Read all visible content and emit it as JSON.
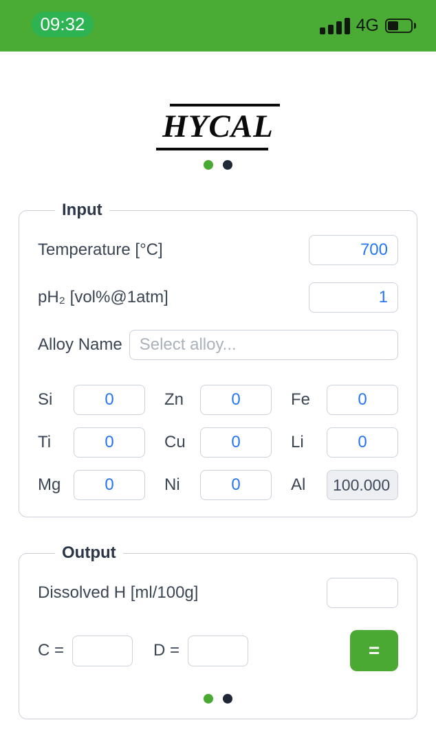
{
  "colors": {
    "header_green": "#4aab35",
    "pill_green": "#2db351",
    "accent_green": "#4aa933",
    "dark_navy": "#2b3648",
    "value_blue": "#2575f4"
  },
  "status_bar": {
    "time": "09:32",
    "network": "4G",
    "signal_bars": 4,
    "battery_level": "45%"
  },
  "logo": {
    "text": "HYCAL"
  },
  "page_indicator": {
    "active_color": "#4aa933",
    "inactive_color": "#1e2836"
  },
  "input_section": {
    "legend": "Input",
    "temperature": {
      "label": "Temperature [°C]",
      "value": "700"
    },
    "ph2": {
      "label": "pH₂ [vol%@1atm]",
      "value": "1"
    },
    "alloy": {
      "label": "Alloy Name",
      "placeholder": "Select alloy..."
    },
    "elements": [
      {
        "symbol": "Si",
        "value": "0"
      },
      {
        "symbol": "Zn",
        "value": "0"
      },
      {
        "symbol": "Fe",
        "value": "0"
      },
      {
        "symbol": "Ti",
        "value": "0"
      },
      {
        "symbol": "Cu",
        "value": "0"
      },
      {
        "symbol": "Li",
        "value": "0"
      },
      {
        "symbol": "Mg",
        "value": "0"
      },
      {
        "symbol": "Ni",
        "value": "0"
      },
      {
        "symbol": "Al",
        "value": "100.000"
      }
    ]
  },
  "output_section": {
    "legend": "Output",
    "dissolved_h": {
      "label": "Dissolved H [ml/100g]",
      "value": ""
    },
    "c": {
      "label": "C =",
      "value": ""
    },
    "d": {
      "label": "D =",
      "value": ""
    },
    "equals_button": "="
  }
}
